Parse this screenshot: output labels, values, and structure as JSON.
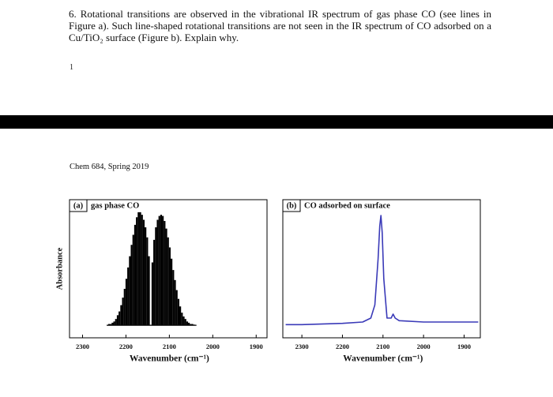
{
  "question": {
    "text": "6. Rotational transitions are observed in the vibrational IR spectrum of gas phase CO (see lines in Figure a). Such line-shaped rotational transitions are not seen in the IR spectrum of CO adsorbed on a Cu/TiO₂ surface (Figure b). Explain why.",
    "page_number": "1"
  },
  "header": "Chem 684, Spring 2019",
  "chart_data": [
    {
      "type": "stem",
      "panel_label": "(a)",
      "title": "gas phase CO",
      "y_label": "Absorbance",
      "x_label": "Wavenumber (cm⁻¹)",
      "color": "#000000",
      "x": [
        2147,
        2151,
        2155,
        2159,
        2163,
        2167,
        2171,
        2175,
        2179,
        2183,
        2187,
        2191,
        2195,
        2199,
        2203,
        2207,
        2211,
        2215,
        2219,
        2223,
        2227,
        2231,
        2235,
        2239,
        2139,
        2135,
        2131,
        2127,
        2123,
        2119,
        2115,
        2111,
        2107,
        2103,
        2099,
        2095,
        2091,
        2087,
        2083,
        2079,
        2075,
        2071,
        2067,
        2063,
        2059,
        2055,
        2051,
        2047,
        2043
      ],
      "values": [
        0.55,
        0.7,
        0.78,
        0.84,
        0.88,
        0.9,
        0.9,
        0.86,
        0.8,
        0.72,
        0.64,
        0.55,
        0.46,
        0.37,
        0.29,
        0.22,
        0.16,
        0.11,
        0.08,
        0.05,
        0.03,
        0.02,
        0.01,
        0.01,
        0.5,
        0.68,
        0.78,
        0.84,
        0.87,
        0.88,
        0.87,
        0.83,
        0.77,
        0.7,
        0.62,
        0.53,
        0.44,
        0.36,
        0.28,
        0.21,
        0.15,
        0.1,
        0.07,
        0.05,
        0.03,
        0.02,
        0.01,
        0.01,
        0.005
      ],
      "xlim": [
        2330,
        1875
      ],
      "ylim": [
        -0.1,
        1
      ],
      "xticks": [
        2300,
        2200,
        2100,
        2000,
        1900
      ]
    },
    {
      "type": "line",
      "panel_label": "(b)",
      "title": "CO adsorbed on surface",
      "x_label": "Wavenumber (cm⁻¹)",
      "color": "#3a3ab8",
      "x": [
        2340,
        2300,
        2200,
        2150,
        2130,
        2120,
        2112,
        2108,
        2105,
        2102,
        2098,
        2090,
        2080,
        2075,
        2070,
        2060,
        2000,
        1900,
        1865
      ],
      "values": [
        0.05,
        0.05,
        0.06,
        0.07,
        0.1,
        0.2,
        0.55,
        0.8,
        0.88,
        0.75,
        0.4,
        0.1,
        0.1,
        0.13,
        0.1,
        0.08,
        0.07,
        0.07,
        0.07
      ],
      "xlim": [
        2347,
        1860
      ],
      "ylim": [
        -0.05,
        1
      ],
      "xticks": [
        2300,
        2200,
        2100,
        2000,
        1900
      ]
    }
  ]
}
